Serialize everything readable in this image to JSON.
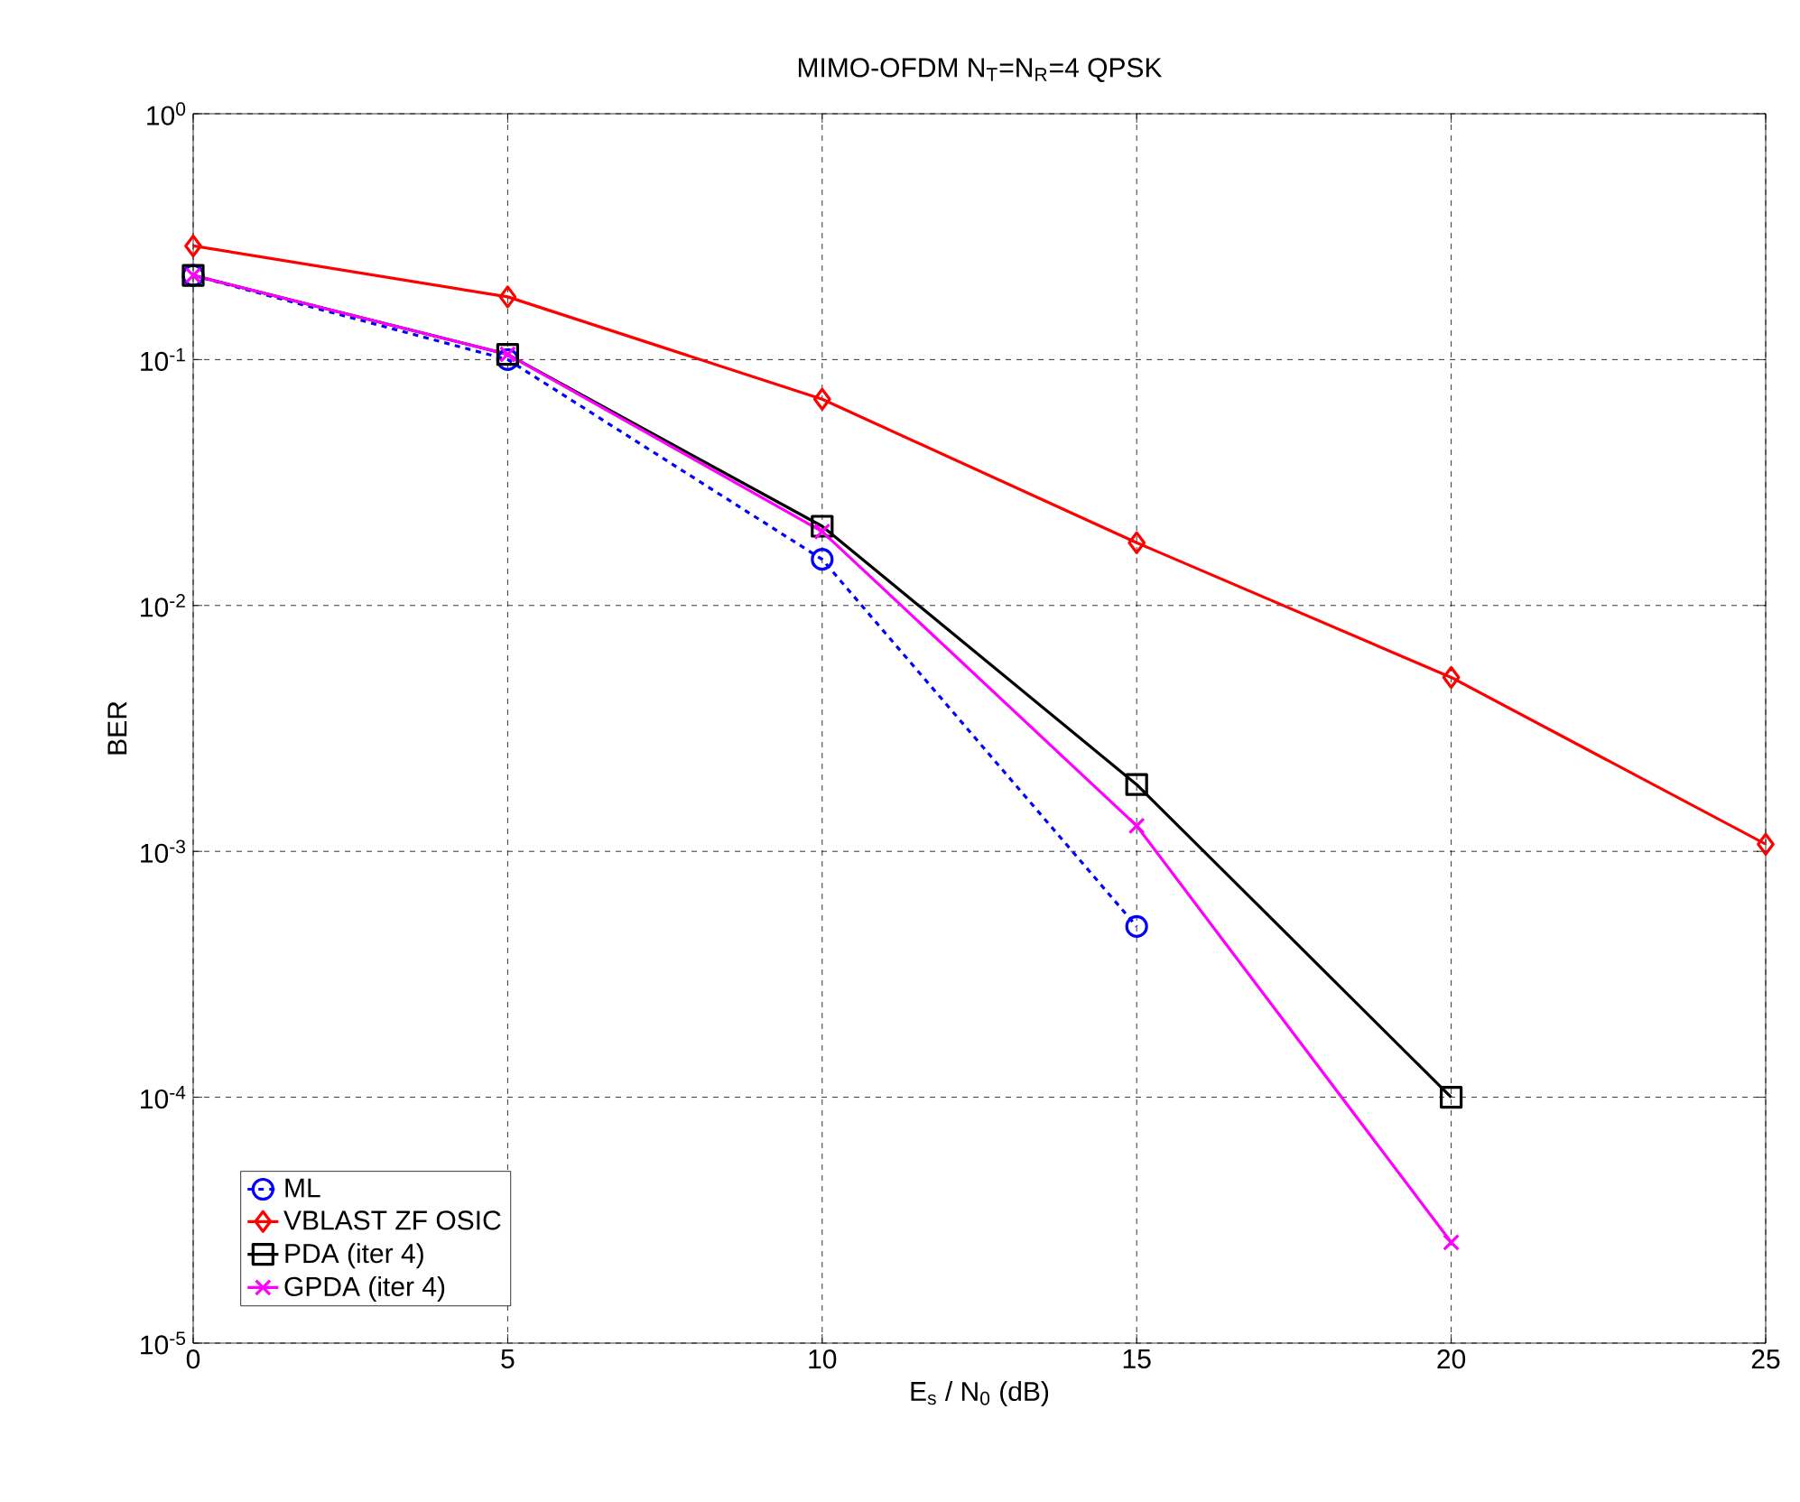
{
  "chart_data": {
    "type": "line",
    "title": "MIMO-OFDM N$_{T}$=N$_{R}$=4 QPSK",
    "xlabel": "E$_{s}$ / N$_{0}$ (dB)",
    "ylabel": "BER",
    "x": [
      0,
      5,
      10,
      15,
      20,
      25
    ],
    "series": [
      {
        "name": "ML",
        "color": "#0000ff",
        "marker": "circle",
        "line_style": "dashed",
        "values": [
          0.22,
          0.1,
          0.0154,
          0.000495,
          null,
          null
        ]
      },
      {
        "name": "VBLAST ZF OSIC",
        "color": "#ff0000",
        "marker": "diamond",
        "line_style": "solid",
        "values": [
          0.29,
          0.18,
          0.069,
          0.018,
          0.0051,
          0.00107
        ]
      },
      {
        "name": "PDA (iter 4)",
        "color": "#000000",
        "marker": "square",
        "line_style": "solid",
        "values": [
          0.22,
          0.105,
          0.021,
          0.00187,
          0.0001,
          null
        ]
      },
      {
        "name": "GPDA (iter 4)",
        "color": "#ff00ff",
        "marker": "cross",
        "line_style": "solid",
        "values": [
          0.22,
          0.105,
          0.02,
          0.00127,
          2.57e-05,
          null
        ]
      }
    ],
    "log": "y",
    "xlim": [
      0,
      25
    ],
    "ylim": [
      1e-05,
      1
    ],
    "xticks": [
      0,
      5,
      10,
      15,
      20,
      25
    ],
    "yticks": [
      {
        "value": 1e-05,
        "label": "10$^{-5}$"
      },
      {
        "value": 0.0001,
        "label": "10$^{-4}$"
      },
      {
        "value": 0.001,
        "label": "10$^{-3}$"
      },
      {
        "value": 0.01,
        "label": "10$^{-2}$"
      },
      {
        "value": 0.1,
        "label": "10$^{-1}$"
      },
      {
        "value": 1,
        "label": "10$^{0}$"
      }
    ],
    "grid": true,
    "legend": "bottom left"
  }
}
